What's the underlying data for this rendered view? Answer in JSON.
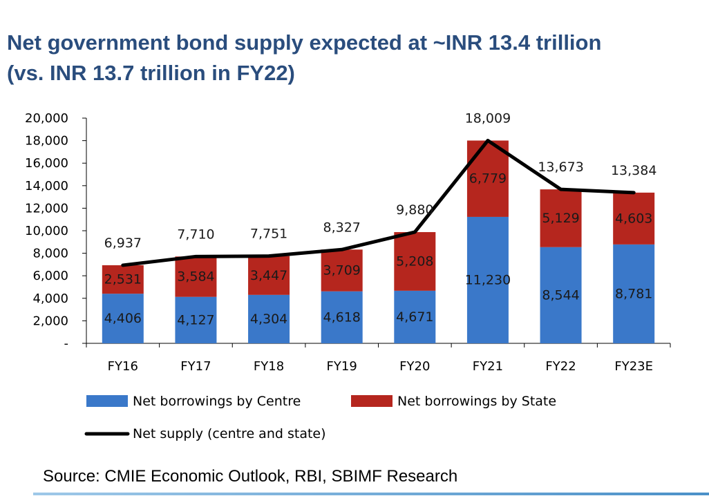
{
  "title_line1": "Net government bond supply expected at ~INR 13.4 trillion",
  "title_line2": "(vs. INR 13.7 trillion in FY22)",
  "source": "Source: CMIE Economic Outlook, RBI, SBIMF Research",
  "colors": {
    "centre": "#3a78c9",
    "state": "#b5261e",
    "line": "#000000",
    "title": "#2a4d7d"
  },
  "chart_data": {
    "type": "bar",
    "stacked": true,
    "categories": [
      "FY16",
      "FY17",
      "FY18",
      "FY19",
      "FY20",
      "FY21",
      "FY22",
      "FY23E"
    ],
    "series": [
      {
        "name": "Net borrowings by Centre",
        "type": "bar",
        "values": [
          4406,
          4127,
          4304,
          4618,
          4671,
          11230,
          8544,
          8781
        ],
        "labels": [
          "4,406",
          "4,127",
          "4,304",
          "4,618",
          "4,671",
          "11,230",
          "8,544",
          "8,781"
        ]
      },
      {
        "name": "Net borrowings by State",
        "type": "bar",
        "values": [
          2531,
          3584,
          3447,
          3709,
          5208,
          6779,
          5129,
          4603
        ],
        "labels": [
          "2,531",
          "3,584",
          "3,447",
          "3,709",
          "5,208",
          "6,779",
          "5,129",
          "4,603"
        ]
      },
      {
        "name": "Net supply (centre and state)",
        "type": "line",
        "values": [
          6937,
          7710,
          7751,
          8327,
          9880,
          18009,
          13673,
          13384
        ],
        "labels": [
          "6,937",
          "7,710",
          "7,751",
          "8,327",
          "9,880",
          "18,009",
          "13,673",
          "13,384"
        ]
      }
    ],
    "ylim": [
      0,
      20000
    ],
    "yticks": [
      0,
      2000,
      4000,
      6000,
      8000,
      10000,
      12000,
      14000,
      16000,
      18000,
      20000
    ],
    "ytick_labels": [
      "-",
      "2,000",
      "4,000",
      "6,000",
      "8,000",
      "10,000",
      "12,000",
      "14,000",
      "16,000",
      "18,000",
      "20,000"
    ],
    "legend_position": "bottom",
    "grid": false
  }
}
